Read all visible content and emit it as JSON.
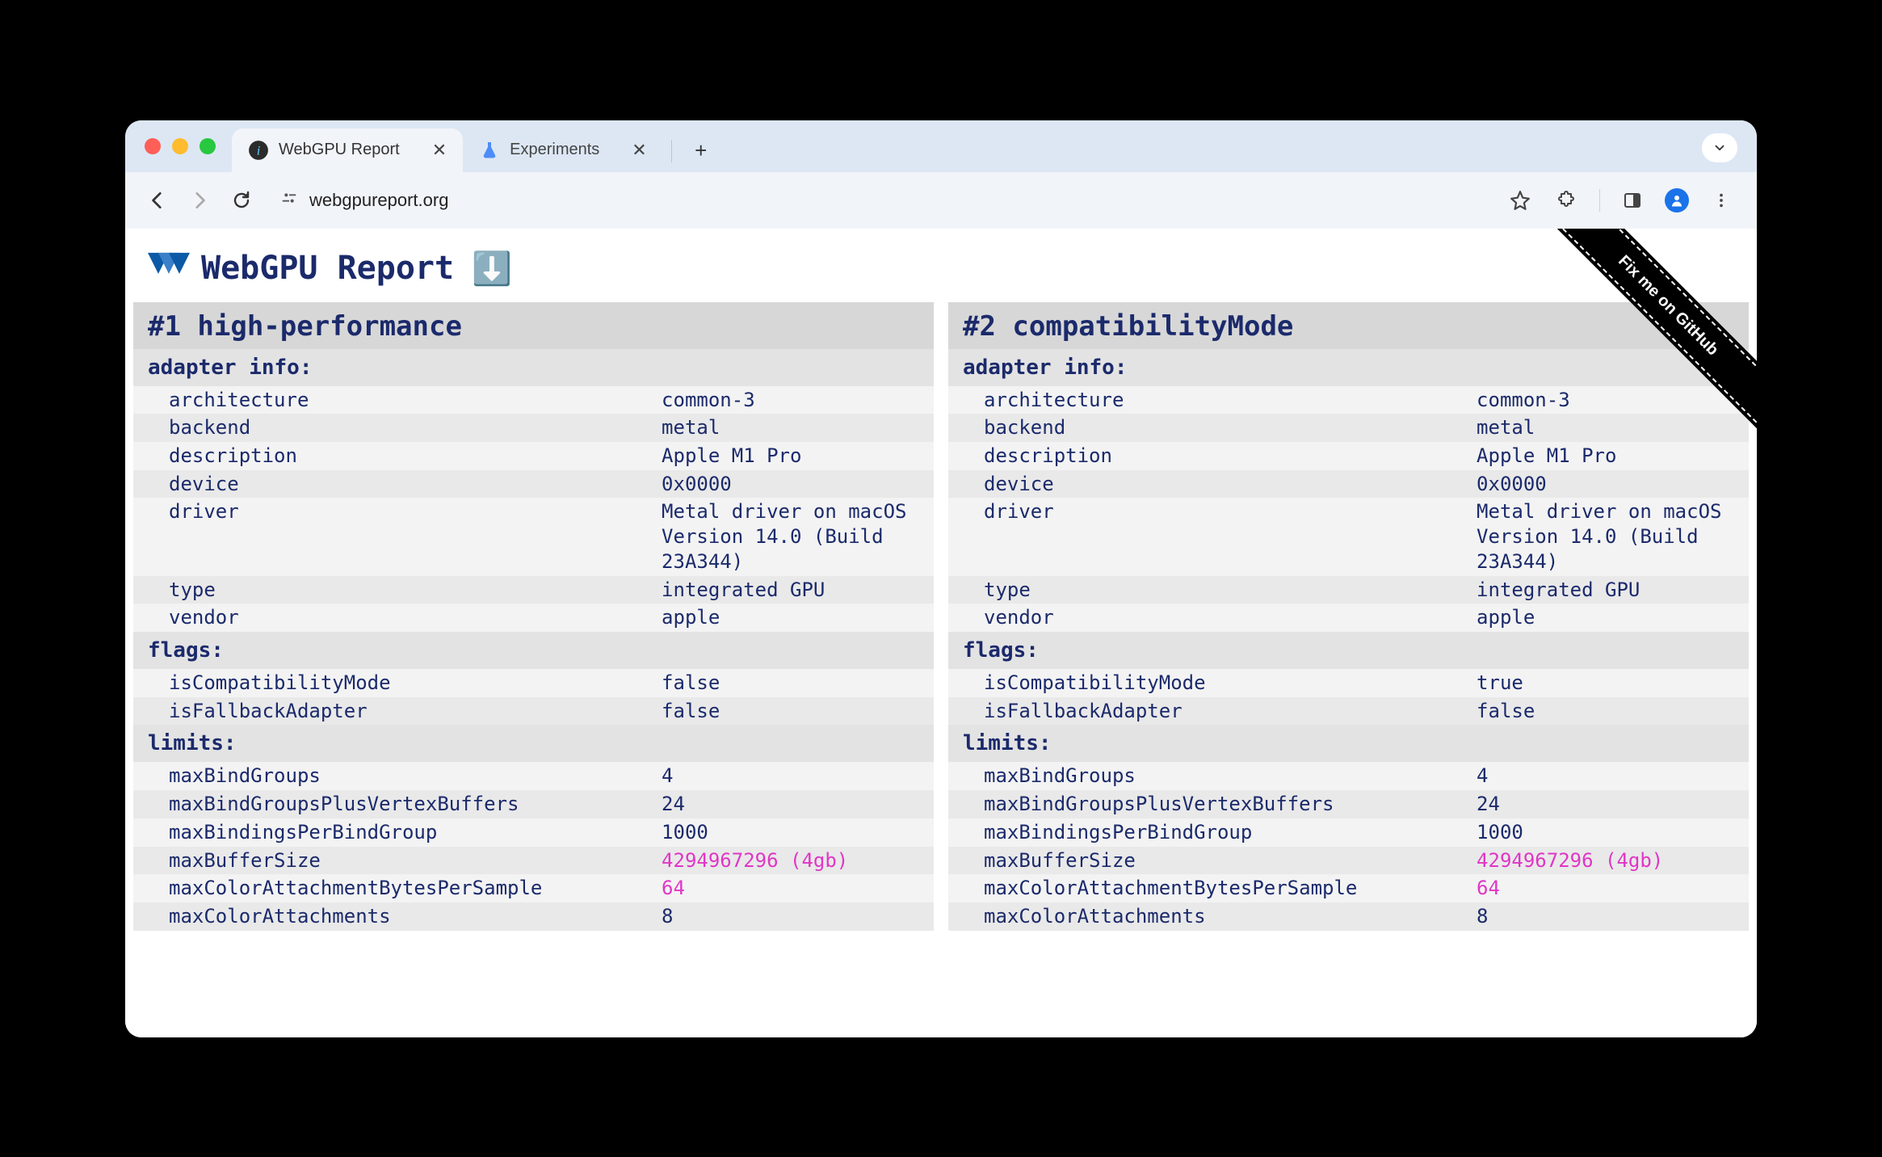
{
  "browser": {
    "tabs": [
      {
        "title": "WebGPU Report",
        "active": true
      },
      {
        "title": "Experiments",
        "active": false
      }
    ],
    "url": "webgpureport.org"
  },
  "page": {
    "title": "WebGPU Report",
    "download_icon": "⬇️",
    "ribbon": "Fix me on GitHub",
    "colors": {
      "heading": "#1b2a6b",
      "section_bg": "#e3e3e3",
      "title_bg": "#d7d7d7",
      "row_even": "#f3f3f3",
      "row_odd": "#e9e9e9",
      "highlight": "#e036c6"
    }
  },
  "adapters": [
    {
      "title": "#1 high-performance",
      "sections": [
        {
          "name": "adapter info:",
          "rows": [
            {
              "k": "architecture",
              "v": "common-3"
            },
            {
              "k": "backend",
              "v": "metal"
            },
            {
              "k": "description",
              "v": "Apple M1 Pro"
            },
            {
              "k": "device",
              "v": "0x0000"
            },
            {
              "k": "driver",
              "v": "Metal driver on macOS Version 14.0 (Build 23A344)"
            },
            {
              "k": "type",
              "v": "integrated GPU"
            },
            {
              "k": "vendor",
              "v": "apple"
            }
          ]
        },
        {
          "name": "flags:",
          "rows": [
            {
              "k": "isCompatibilityMode",
              "v": "false"
            },
            {
              "k": "isFallbackAdapter",
              "v": "false"
            }
          ]
        },
        {
          "name": "limits:",
          "rows": [
            {
              "k": "maxBindGroups",
              "v": "4"
            },
            {
              "k": "maxBindGroupsPlusVertexBuffers",
              "v": "24"
            },
            {
              "k": "maxBindingsPerBindGroup",
              "v": "1000"
            },
            {
              "k": "maxBufferSize",
              "v": "4294967296 (4gb)",
              "hl": true
            },
            {
              "k": "maxColorAttachmentBytesPerSample",
              "v": "64",
              "hl": true
            },
            {
              "k": "maxColorAttachments",
              "v": "8"
            }
          ]
        }
      ]
    },
    {
      "title": "#2 compatibilityMode",
      "sections": [
        {
          "name": "adapter info:",
          "rows": [
            {
              "k": "architecture",
              "v": "common-3"
            },
            {
              "k": "backend",
              "v": "metal"
            },
            {
              "k": "description",
              "v": "Apple M1 Pro"
            },
            {
              "k": "device",
              "v": "0x0000"
            },
            {
              "k": "driver",
              "v": "Metal driver on macOS Version 14.0 (Build 23A344)"
            },
            {
              "k": "type",
              "v": "integrated GPU"
            },
            {
              "k": "vendor",
              "v": "apple"
            }
          ]
        },
        {
          "name": "flags:",
          "rows": [
            {
              "k": "isCompatibilityMode",
              "v": "true"
            },
            {
              "k": "isFallbackAdapter",
              "v": "false"
            }
          ]
        },
        {
          "name": "limits:",
          "rows": [
            {
              "k": "maxBindGroups",
              "v": "4"
            },
            {
              "k": "maxBindGroupsPlusVertexBuffers",
              "v": "24"
            },
            {
              "k": "maxBindingsPerBindGroup",
              "v": "1000"
            },
            {
              "k": "maxBufferSize",
              "v": "4294967296 (4gb)",
              "hl": true
            },
            {
              "k": "maxColorAttachmentBytesPerSample",
              "v": "64",
              "hl": true
            },
            {
              "k": "maxColorAttachments",
              "v": "8"
            }
          ]
        }
      ]
    }
  ]
}
